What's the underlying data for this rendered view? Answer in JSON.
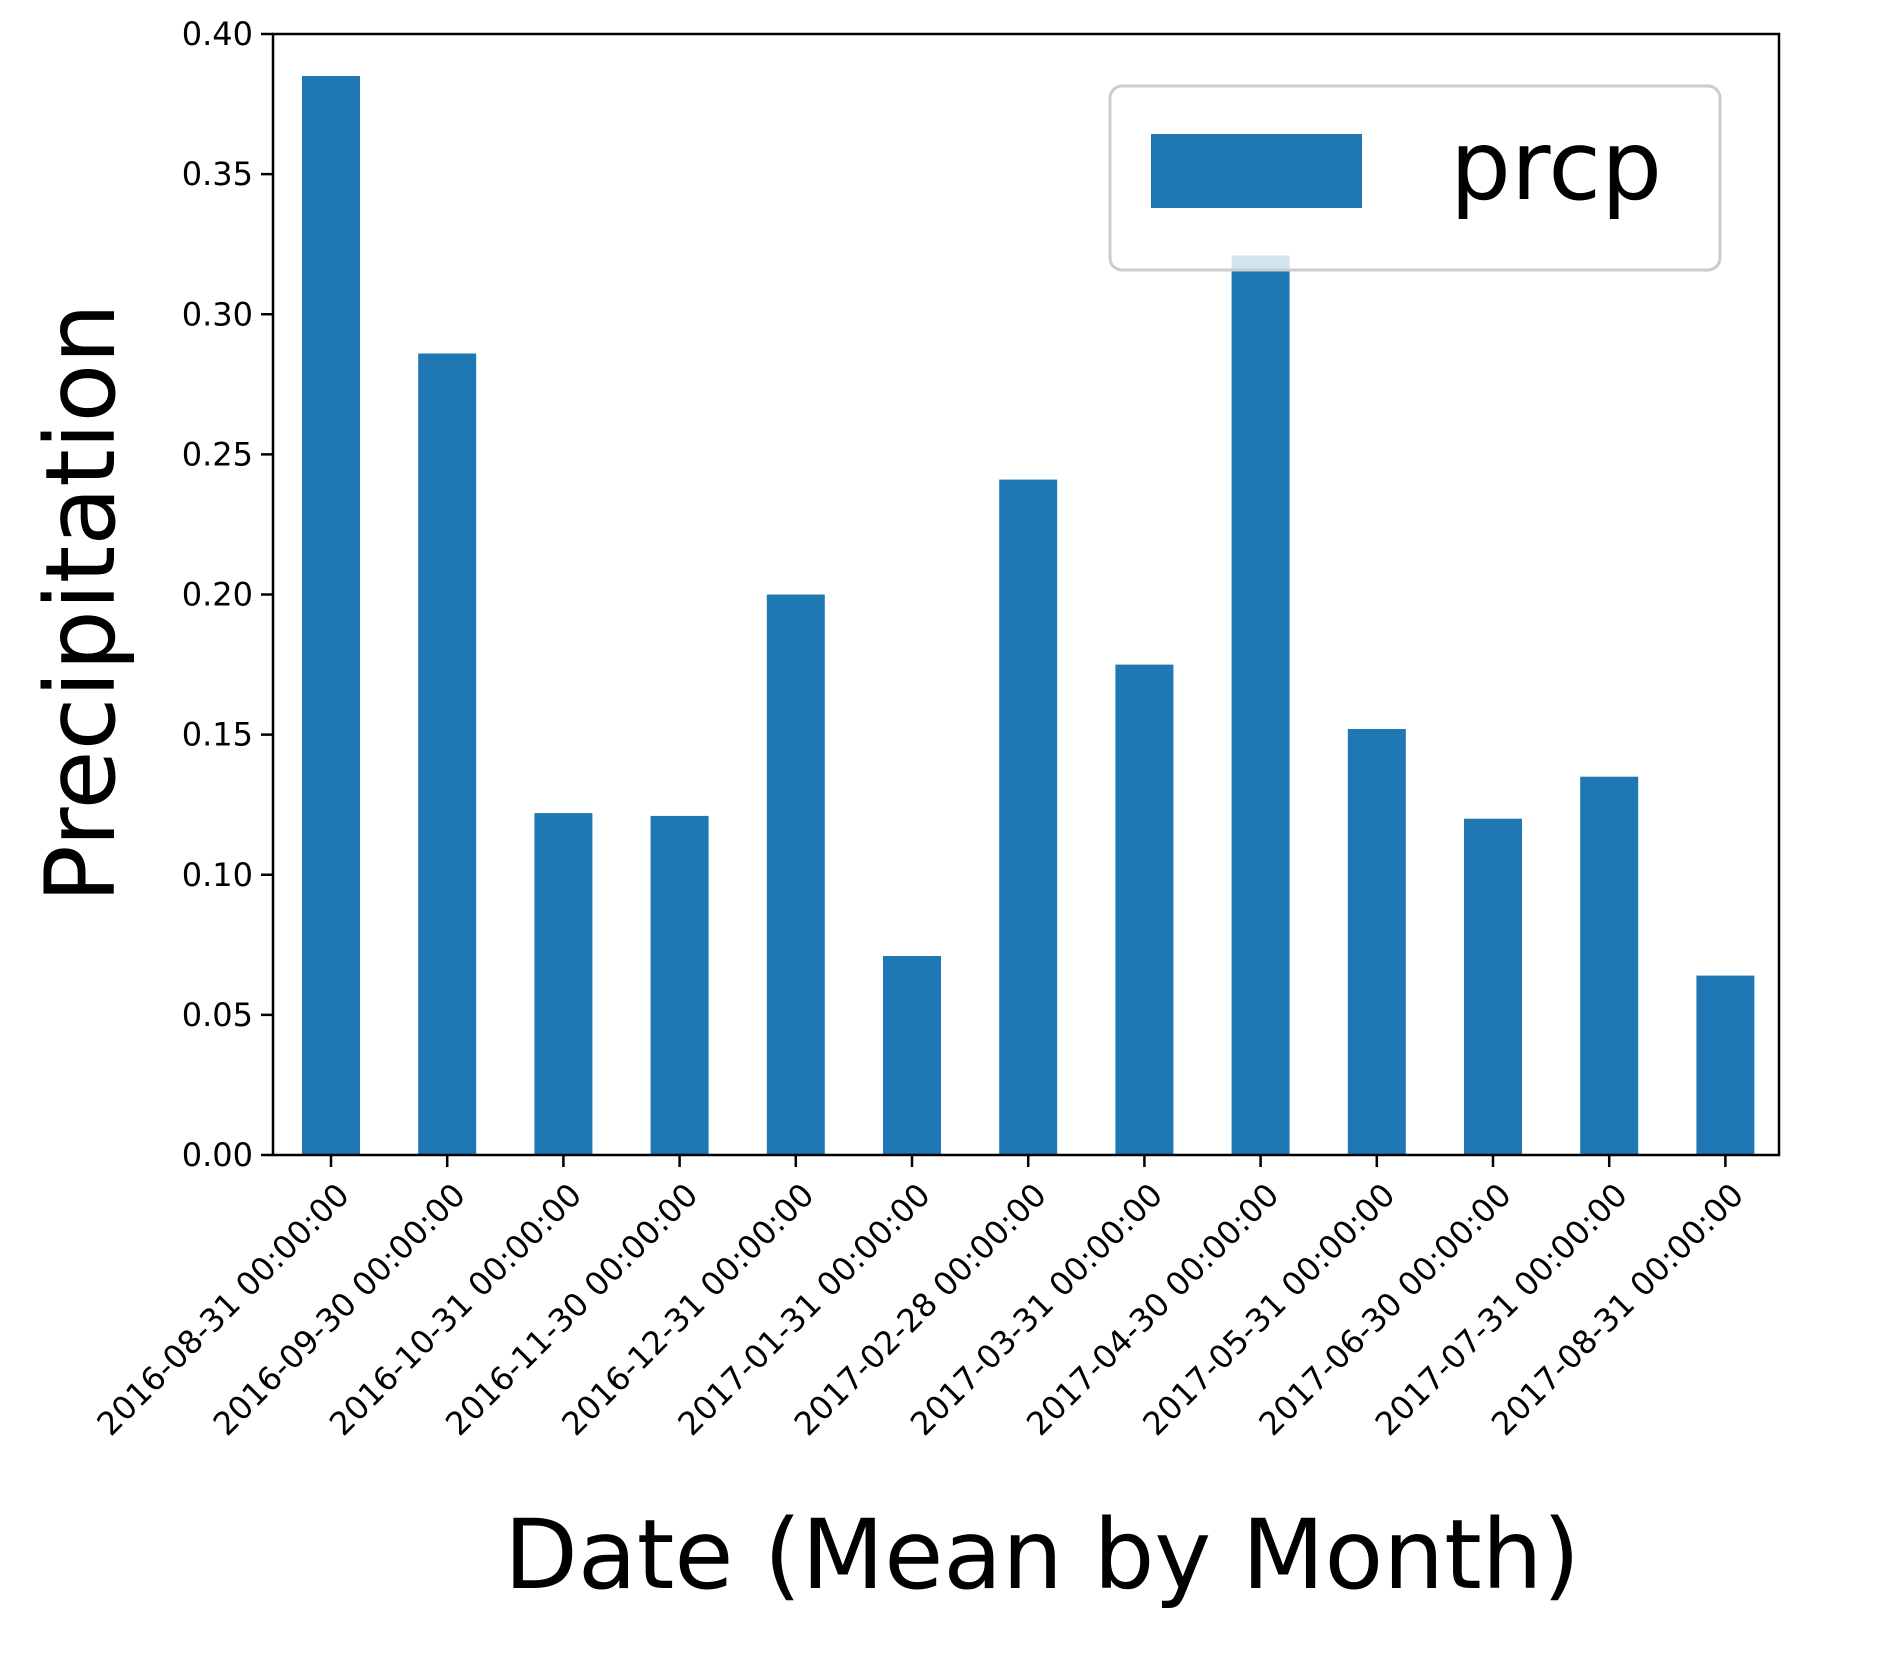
{
  "chart_data": {
    "type": "bar",
    "categories": [
      "2016-08-31 00:00:00",
      "2016-09-30 00:00:00",
      "2016-10-31 00:00:00",
      "2016-11-30 00:00:00",
      "2016-12-31 00:00:00",
      "2017-01-31 00:00:00",
      "2017-02-28 00:00:00",
      "2017-03-31 00:00:00",
      "2017-04-30 00:00:00",
      "2017-05-31 00:00:00",
      "2017-06-30 00:00:00",
      "2017-07-31 00:00:00",
      "2017-08-31 00:00:00"
    ],
    "series": [
      {
        "name": "prcp",
        "color": "#1f77b4",
        "values": [
          0.385,
          0.286,
          0.122,
          0.121,
          0.2,
          0.071,
          0.241,
          0.175,
          0.321,
          0.152,
          0.12,
          0.135,
          0.064
        ]
      }
    ],
    "xlabel": "Date (Mean by Month)",
    "ylabel": "Precipitation",
    "ylim": [
      0,
      0.4
    ],
    "yticks": [
      "0.00",
      "0.05",
      "0.10",
      "0.15",
      "0.20",
      "0.25",
      "0.30",
      "0.35",
      "0.40"
    ],
    "grid": false,
    "legend": {
      "placement": "top-right",
      "entries": [
        "prcp"
      ]
    }
  }
}
